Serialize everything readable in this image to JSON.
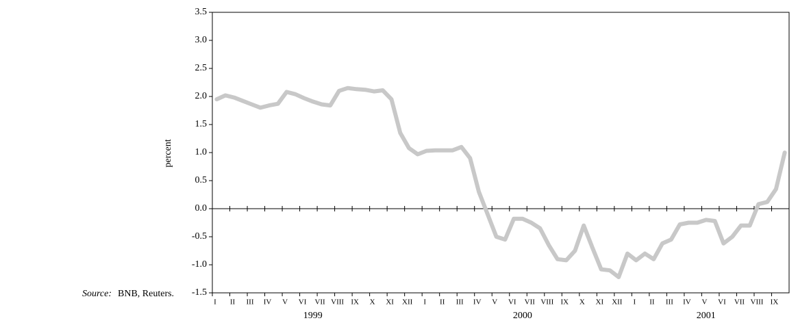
{
  "chart_data": {
    "type": "line",
    "y_label": "percent",
    "source": {
      "label": "Source:",
      "text": "BNB, Reuters."
    },
    "categories": [
      "I",
      null,
      "II",
      null,
      "III",
      null,
      "IV",
      null,
      "V",
      null,
      "VI",
      null,
      "VII",
      null,
      "VIII",
      null,
      "IX",
      null,
      "X",
      null,
      "XI",
      null,
      "XII",
      null,
      "I",
      null,
      "II",
      null,
      "III",
      null,
      "IV",
      null,
      "V",
      null,
      "VI",
      null,
      "VII",
      null,
      "VIII",
      null,
      "IX",
      null,
      "X",
      null,
      "XI",
      null,
      "XII",
      null,
      "I",
      null,
      "II",
      null,
      "III",
      null,
      "IV",
      null,
      "V",
      null,
      "VI",
      null,
      "VII",
      null,
      "VIII",
      null,
      "IX",
      null
    ],
    "x_group_labels": [
      "1999",
      "2000",
      "2001"
    ],
    "series": [
      {
        "color": "#c8c8c8",
        "values": [
          1.95,
          2.02,
          1.98,
          1.92,
          1.86,
          1.8,
          1.84,
          1.87,
          2.08,
          2.04,
          1.97,
          1.91,
          1.86,
          1.84,
          2.1,
          2.15,
          2.13,
          2.12,
          2.09,
          2.11,
          1.95,
          1.35,
          1.08,
          0.97,
          1.03,
          1.04,
          1.04,
          1.04,
          1.1,
          0.9,
          0.3,
          -0.1,
          -0.5,
          -0.55,
          -0.18,
          -0.18,
          -0.25,
          -0.35,
          -0.65,
          -0.9,
          -0.92,
          -0.75,
          -0.3,
          -0.7,
          -1.08,
          -1.1,
          -1.22,
          -0.8,
          -0.92,
          -0.8,
          -0.9,
          -0.62,
          -0.55,
          -0.28,
          -0.25,
          -0.25,
          -0.2,
          -0.22,
          -0.62,
          -0.5,
          -0.3,
          -0.3,
          0.08,
          0.12,
          0.35,
          1.0
        ]
      }
    ],
    "ylim": [
      -1.5,
      3.5
    ],
    "yticks": [
      3.5,
      {
        "value": 3,
        "label": "3.0"
      },
      2.5,
      {
        "value": 2,
        "label": "2.0"
      },
      1.5,
      {
        "value": 1,
        "label": "1.0"
      },
      0.5,
      {
        "value": 0,
        "label": "0.0"
      },
      -0.5,
      {
        "value": -1,
        "label": "-1.0"
      },
      -1.5
    ]
  }
}
